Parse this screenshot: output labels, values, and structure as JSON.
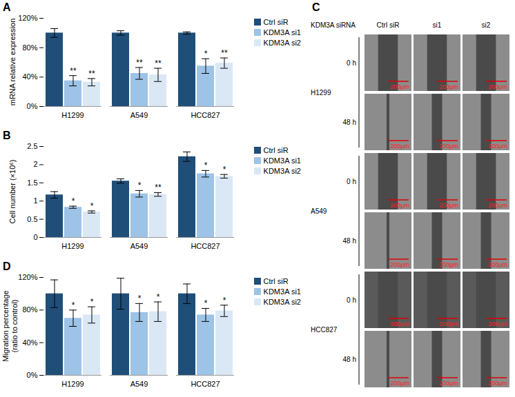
{
  "chart_data": [
    {
      "panel": "A",
      "type": "bar",
      "y_label": "mRNA relative expression",
      "categories": [
        "H1299",
        "A549",
        "HCC827"
      ],
      "series": [
        {
          "name": "Ctrl siR",
          "color": "#1F4E79",
          "values": [
            100,
            100,
            100
          ],
          "errors": [
            6,
            3,
            1.5
          ]
        },
        {
          "name": "KDM3A si1",
          "color": "#9DC3E6",
          "values": [
            35,
            45,
            55
          ],
          "errors": [
            7,
            8,
            10
          ],
          "significance": [
            "**",
            "**",
            "*"
          ]
        },
        {
          "name": "KDM3A si2",
          "color": "#DAE8F5",
          "values": [
            33,
            43,
            59
          ],
          "errors": [
            5,
            9,
            7
          ],
          "significance": [
            "**",
            "**",
            "**"
          ]
        }
      ],
      "ylim": [
        0,
        120
      ],
      "yticks": [
        {
          "value": 0,
          "label": "0%"
        },
        {
          "value": 40,
          "label": "40%"
        },
        {
          "value": 80,
          "label": "80%"
        },
        {
          "value": 120,
          "label": "120%"
        }
      ],
      "legend": "right"
    },
    {
      "panel": "B",
      "type": "bar",
      "y_label": "Cell number (×10⁶)",
      "categories": [
        "H1299",
        "A549",
        "HCC827"
      ],
      "series": [
        {
          "name": "Ctrl siR",
          "color": "#1F4E79",
          "values": [
            1.17,
            1.55,
            2.22
          ],
          "errors": [
            0.09,
            0.06,
            0.13
          ]
        },
        {
          "name": "KDM3A si1",
          "color": "#9DC3E6",
          "values": [
            0.83,
            1.2,
            1.75
          ],
          "errors": [
            0.03,
            0.09,
            0.09
          ],
          "significance": [
            "*",
            "*",
            "*"
          ]
        },
        {
          "name": "KDM3A si2",
          "color": "#DAE8F5",
          "values": [
            0.7,
            1.18,
            1.68
          ],
          "errors": [
            0.03,
            0.05,
            0.05
          ],
          "significance": [
            "*",
            "**",
            "*"
          ]
        }
      ],
      "ylim": [
        0,
        2.5
      ],
      "yticks": [
        0,
        0.5,
        1,
        1.5,
        2,
        2.5
      ],
      "legend": "right"
    },
    {
      "panel": "D",
      "type": "bar",
      "y_label": "Migration percentage (ratio to control)",
      "categories": [
        "H1299",
        "A549",
        "HCC827"
      ],
      "series": [
        {
          "name": "Ctrl siR",
          "color": "#1F4E79",
          "values": [
            100,
            100,
            100
          ],
          "errors": [
            17,
            19,
            12
          ]
        },
        {
          "name": "KDM3A si1",
          "color": "#9DC3E6",
          "values": [
            70,
            77,
            74
          ],
          "errors": [
            10,
            11,
            8
          ],
          "significance": [
            "*",
            "*",
            "*"
          ]
        },
        {
          "name": "KDM3A si2",
          "color": "#DAE8F5",
          "values": [
            74,
            78,
            79
          ],
          "errors": [
            10,
            12,
            7
          ],
          "significance": [
            "*",
            "*",
            "*"
          ]
        }
      ],
      "ylim": [
        0,
        120
      ],
      "yticks": [
        {
          "value": 0,
          "label": "0%"
        },
        {
          "value": 40,
          "label": "40%"
        },
        {
          "value": 80,
          "label": "80%"
        },
        {
          "value": 120,
          "label": "120%"
        }
      ],
      "legend": "right"
    }
  ],
  "panel_c": {
    "panel": "C",
    "header": "KDM3A siRNA",
    "columns": [
      "Ctrl siR",
      "si1",
      "si2"
    ],
    "rows": [
      {
        "cell_line": "H1299",
        "times": [
          "0 h",
          "48 h"
        ]
      },
      {
        "cell_line": "A549",
        "times": [
          "0 h",
          "48 h"
        ]
      },
      {
        "cell_line": "HCC827",
        "times": [
          "0 h",
          "48 h"
        ]
      }
    ],
    "scale_bar": "200μm"
  }
}
